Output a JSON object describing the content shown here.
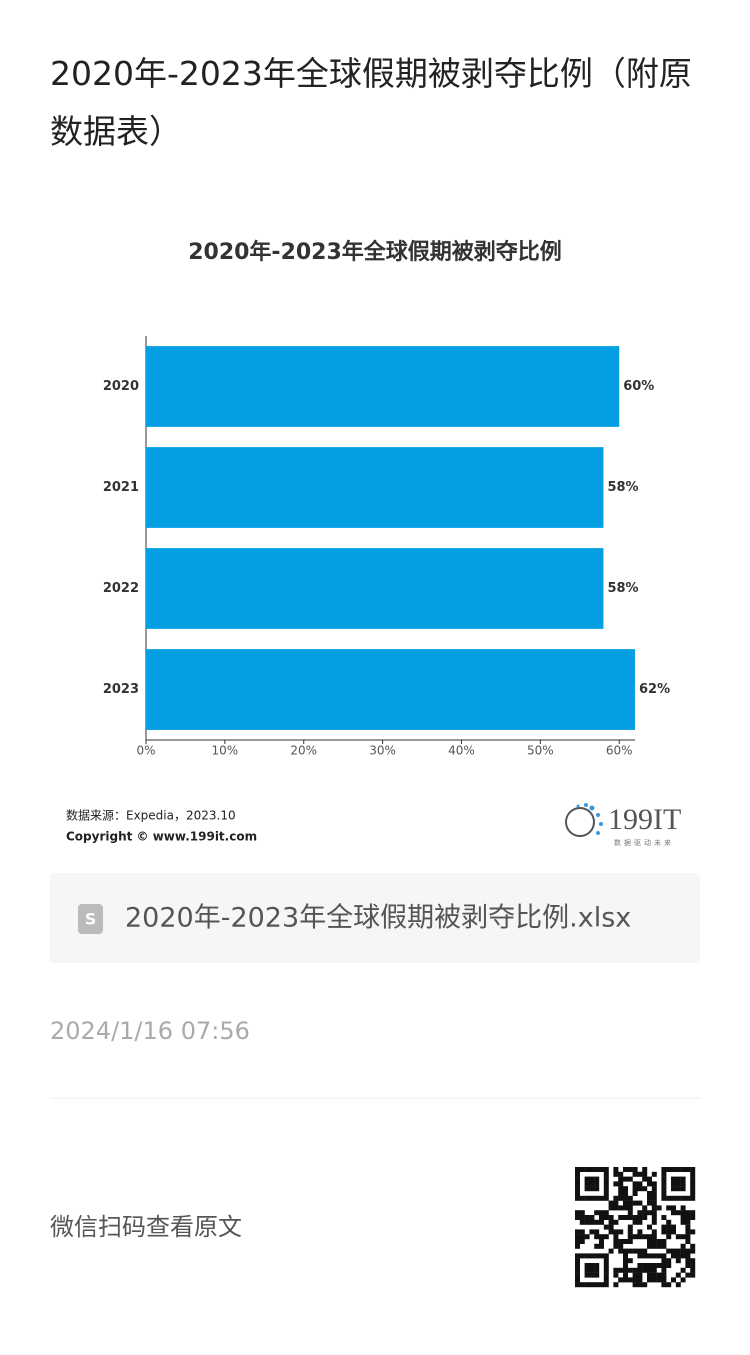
{
  "page_title": "2020年-2023年全球假期被剥夺比例（附原数据表）",
  "chart_data": {
    "type": "bar",
    "orientation": "horizontal",
    "title": "2020年-2023年全球假期被剥夺比例",
    "categories": [
      "2020",
      "2021",
      "2022",
      "2023"
    ],
    "values": [
      60,
      58,
      58,
      62
    ],
    "value_labels": [
      "60%",
      "58%",
      "58%",
      "62%"
    ],
    "color": "#049fe3",
    "xlim": [
      0,
      62
    ],
    "xticks": [
      {
        "value": 0,
        "label": "0%"
      },
      {
        "value": 10,
        "label": "10%"
      },
      {
        "value": 20,
        "label": "20%"
      },
      {
        "value": 30,
        "label": "30%"
      },
      {
        "value": 40,
        "label": "40%"
      },
      {
        "value": 50,
        "label": "50%"
      },
      {
        "value": 60,
        "label": "60%"
      }
    ],
    "source": "数据来源：Expedia，2023.10",
    "copyright": "Copyright © www.199it.com",
    "logo": "199IT",
    "logo_tagline": "数据驱动未来"
  },
  "attachment": "2020年-2023年全球假期被剥夺比例.xlsx",
  "date": "2024/1/16 07:56",
  "qr_caption": "微信扫码查看原文"
}
